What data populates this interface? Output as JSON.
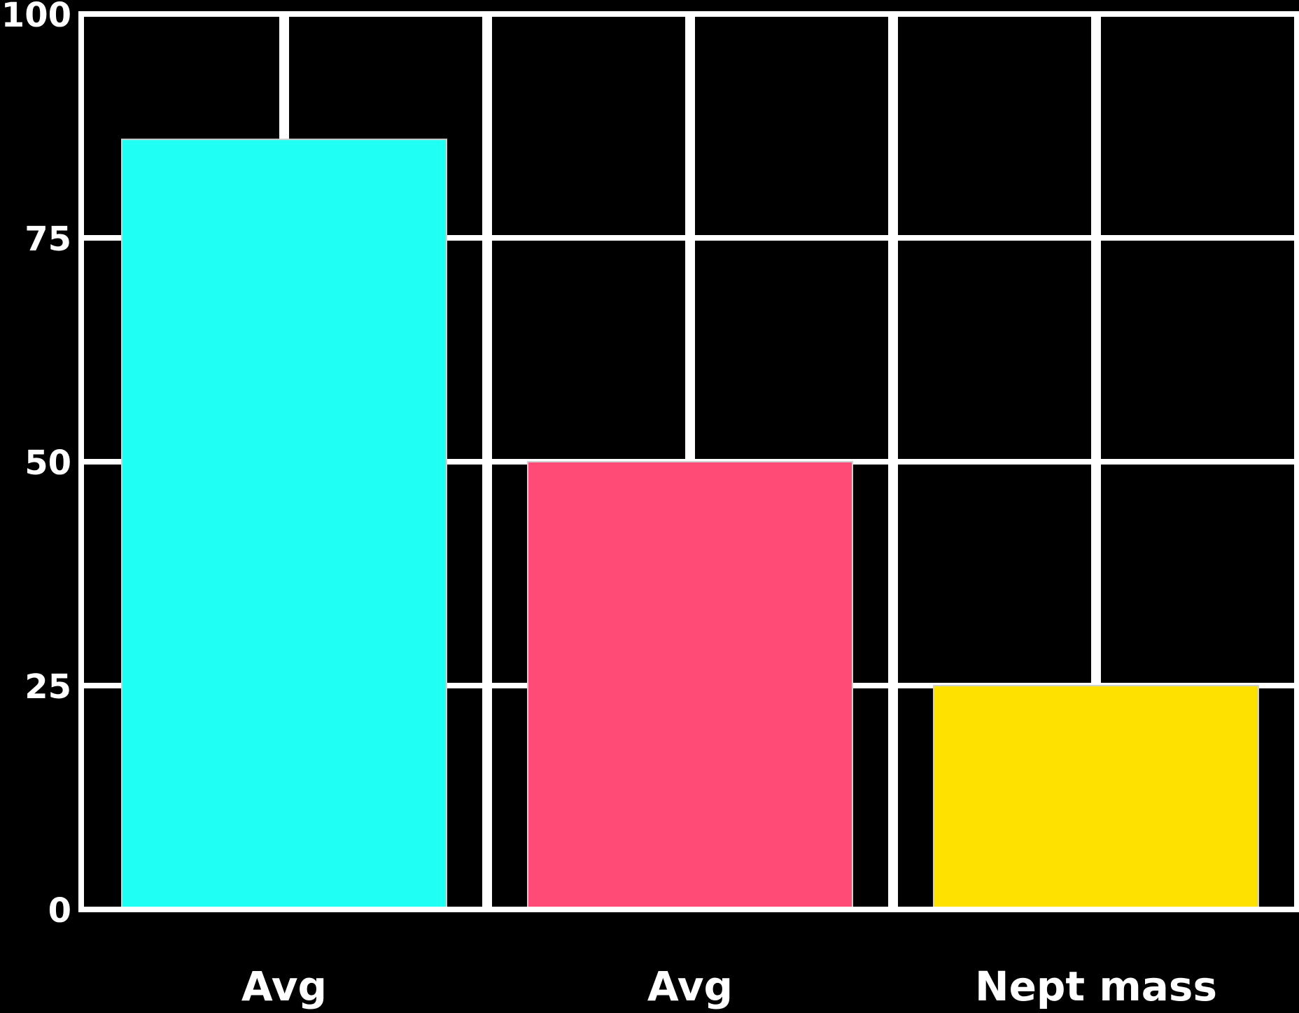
{
  "chart_data": {
    "type": "bar",
    "title": "",
    "xlabel": "",
    "ylabel": "",
    "categories": [
      "Avg",
      "Avg",
      "Nept mass"
    ],
    "values": [
      86,
      50,
      25
    ],
    "ylim": [
      0,
      100
    ],
    "yticks": [
      0,
      25,
      50,
      75,
      100
    ],
    "grid": true,
    "colors": {
      "background": "#000000",
      "grid": "#ffffff",
      "bars": [
        "#1ffff3",
        "#ff4b75",
        "#ffe100"
      ]
    }
  }
}
